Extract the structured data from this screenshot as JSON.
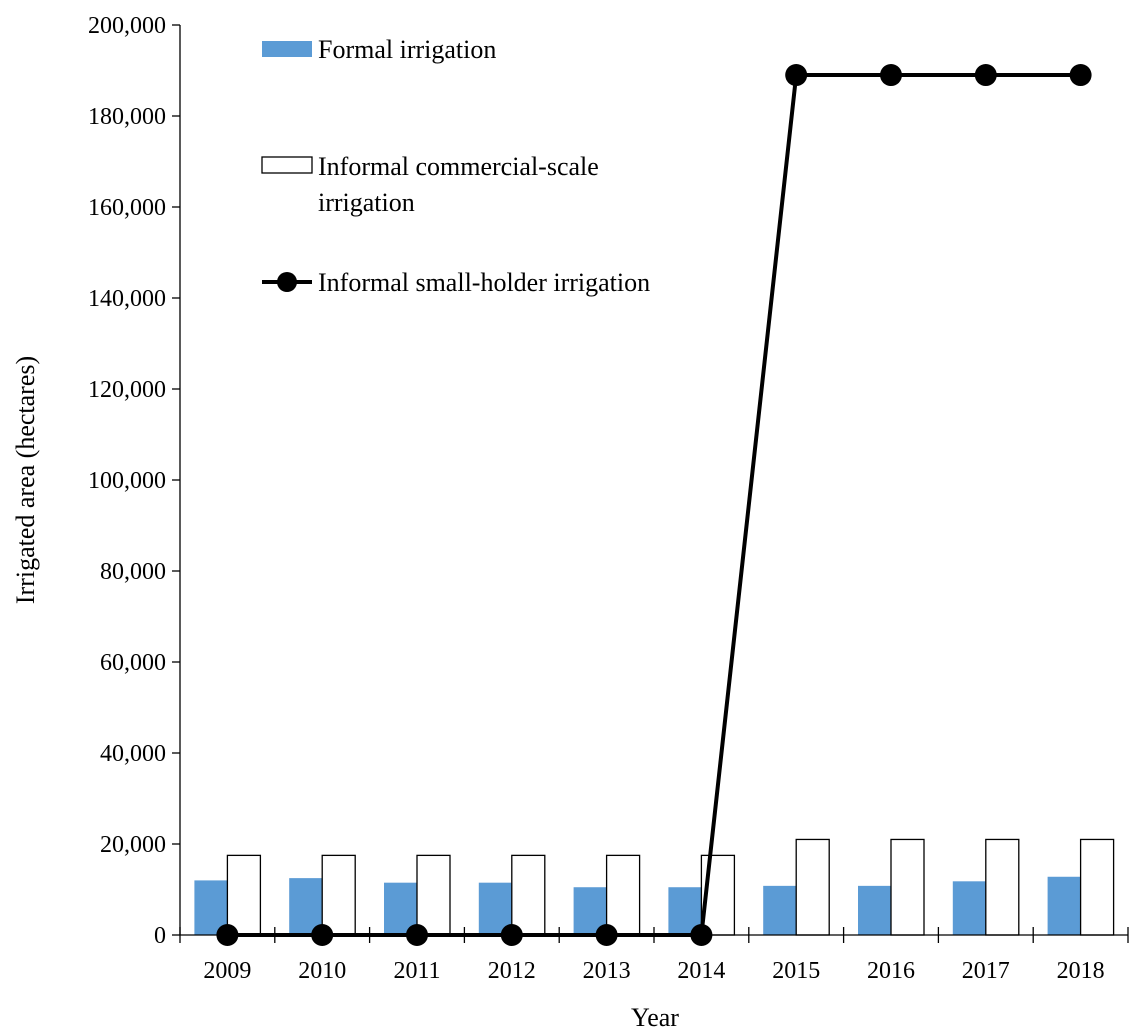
{
  "chart_data": {
    "type": "bar",
    "title": "",
    "xlabel": "Year",
    "ylabel": "Irrigated area (hectares)",
    "ylim": [
      0,
      200000
    ],
    "categories": [
      "2009",
      "2010",
      "2011",
      "2012",
      "2013",
      "2014",
      "2015",
      "2016",
      "2017",
      "2018"
    ],
    "y_ticks": [
      "0",
      "20,000",
      "40,000",
      "60,000",
      "80,000",
      "100,000",
      "120,000",
      "140,000",
      "160,000",
      "180,000",
      "200,000"
    ],
    "y_tick_values": [
      0,
      20000,
      40000,
      60000,
      80000,
      100000,
      120000,
      140000,
      160000,
      180000,
      200000
    ],
    "grid": false,
    "legend_position": "top-left, inside plot",
    "series": [
      {
        "name": "Formal irrigation",
        "kind": "bar",
        "color": "#5B9BD5",
        "values": [
          12000,
          12500,
          11500,
          11500,
          10500,
          10500,
          10800,
          10800,
          11800,
          12800
        ]
      },
      {
        "name": "Informal commercial-scale irrigation",
        "legend_lines": [
          "Informal commercial-scale",
          "irrigation"
        ],
        "kind": "bar",
        "color": "#FFFFFF",
        "edge_color": "#000000",
        "values": [
          17500,
          17500,
          17500,
          17500,
          17500,
          17500,
          21000,
          21000,
          21000,
          21000
        ]
      },
      {
        "name": "Informal small-holder irrigation",
        "kind": "line",
        "color": "#000000",
        "marker": "circle",
        "values": [
          0,
          0,
          0,
          0,
          0,
          0,
          189000,
          189000,
          189000,
          189000
        ]
      }
    ]
  }
}
